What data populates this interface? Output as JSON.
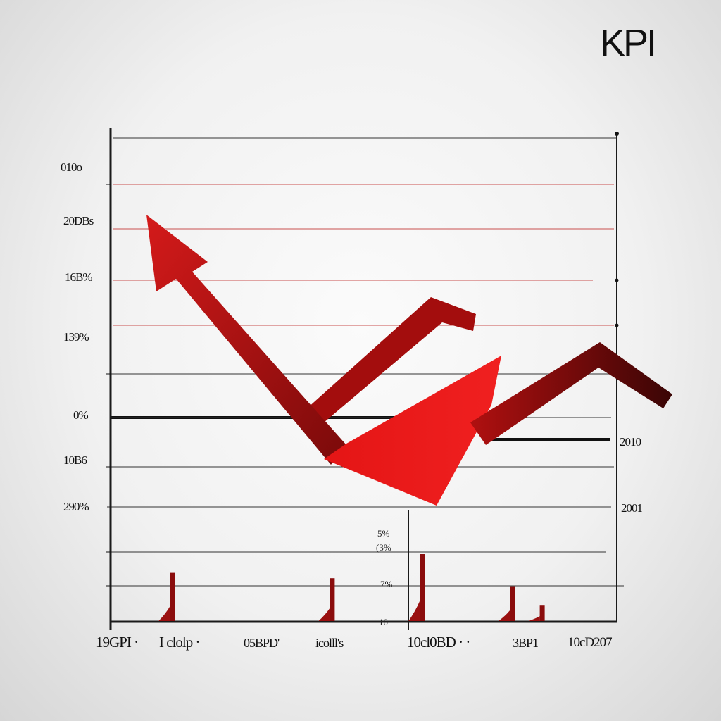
{
  "title": "KPI",
  "colors": {
    "accent_red": "#e01414",
    "dark_red": "#8a0c0c",
    "grid_red": "#d47a7a",
    "axis": "#1a1a1a"
  },
  "chart_data": {
    "type": "line",
    "title": "KPI",
    "y_tick_labels": [
      "010o",
      "20DBs",
      "16B%",
      "139%",
      "0%",
      "10B6",
      "290%"
    ],
    "x_tick_labels": [
      "19GPI ·",
      "I clolp ·",
      "05BPD'",
      "icolll's",
      "10cl0BD · ·",
      "3BP1",
      "10cD207"
    ],
    "right_tick_labels": [
      "2010",
      "2001"
    ],
    "inset_tick_labels": [
      "5%",
      "(3%",
      "7%",
      "10"
    ],
    "grid": true,
    "series": [
      {
        "x": [
          0.0,
          0.45,
          0.68,
          0.82
        ],
        "y": [
          88,
          34,
          62,
          66
        ]
      },
      {
        "x": [
          0.49,
          0.62,
          0.72,
          0.9,
          1.0
        ],
        "y": [
          32,
          22,
          38,
          60,
          45
        ]
      }
    ],
    "bars": {
      "x": [
        0.12,
        0.44,
        0.62,
        0.8,
        0.86
      ],
      "values": [
        18,
        16,
        25,
        13,
        6
      ]
    }
  }
}
